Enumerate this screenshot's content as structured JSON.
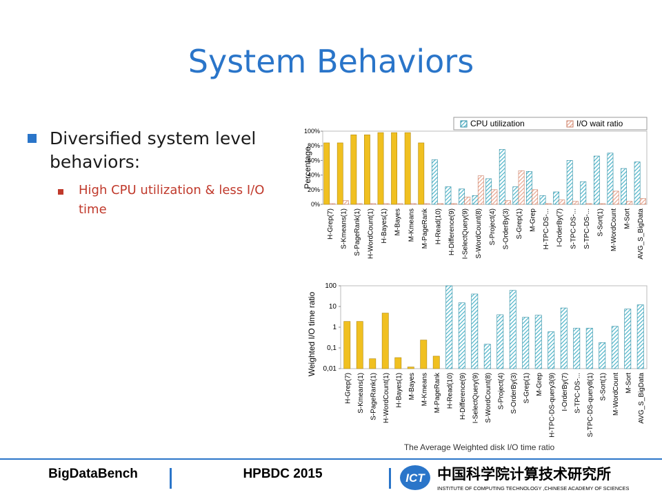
{
  "slide": {
    "title": "System Behaviors",
    "bullet1": "Diversified system level behaviors:",
    "bullet2": "High CPU utilization & less I/O time",
    "caption": "The Average Weighted disk I/O time ratio",
    "footer_left": "BigDataBench",
    "footer_mid": "HPBDC 2015",
    "logo_text_cn": "中国科学院计算技术研究所",
    "logo_text_en": "INSTITUTE OF COMPUTING TECHNOLOGY ,CHINESE ACADEMY OF SCIENCES",
    "accent_color": "#2a75c9",
    "red_color": "#c0392b"
  },
  "chart_data": [
    {
      "type": "bar",
      "ylabel": "Percentage",
      "ylim": [
        0,
        100
      ],
      "yticks": [
        "0%",
        "20%",
        "40%",
        "60%",
        "80%",
        "100%"
      ],
      "legend_position": "top",
      "categories": [
        "H-Grep(7)",
        "S-Kmeans(1)",
        "S-PageRank(1)",
        "H-WordCount(1)",
        "H-Bayes(1)",
        "M-Bayes",
        "M-Kmeans",
        "M-PageRank",
        "H-Read(10)",
        "H-Difference(9)",
        "I-SelectQuery(9)",
        "S-WordCount(8)",
        "S-Project(4)",
        "S-OrderBy(3)",
        "S-Grep(1)",
        "M-Grep",
        "H-TPC-DS-...",
        "I-OrderBy(7)",
        "S-TPC-DS-...",
        "S-TPC-DS-...",
        "S-Sort(1)",
        "M-WordCount",
        "M-Sort",
        "AVG_S_BigData"
      ],
      "series": [
        {
          "name": "CPU utilization",
          "values": [
            84,
            84,
            95,
            95,
            98,
            98,
            98,
            84,
            61,
            24,
            21,
            12,
            35,
            75,
            24,
            45,
            12,
            17,
            60,
            31,
            66,
            70,
            49,
            58
          ]
        },
        {
          "name": "I/O wait ratio",
          "values": [
            1,
            5,
            1,
            1,
            1,
            1,
            1,
            1,
            1,
            1,
            10,
            39,
            20,
            5,
            46,
            20,
            1,
            6,
            4,
            1,
            1,
            18,
            4,
            8
          ]
        }
      ],
      "category_colors": {
        "yellow": "#f0c020",
        "teal": "#4ab3c8"
      },
      "yellow_count": 8,
      "io_color": "#e8a58f"
    },
    {
      "type": "bar",
      "ylabel": "Weighted I/O time ratio",
      "scale": "log",
      "ylim": [
        0.01,
        100
      ],
      "yticks": [
        "0,01",
        "0,1",
        "1",
        "10",
        "100"
      ],
      "categories": [
        "H-Grep(7)",
        "S-Kmeans(1)",
        "S-PageRank(1)",
        "H-WordCount(1)",
        "H-Bayes(1)",
        "M-Bayes",
        "M-Kmeans",
        "M-PageRank",
        "H-Read(10)",
        "H-Difference(9)",
        "I-SelectQuery(9)",
        "S-WordCount(8)",
        "S-Project(4)",
        "S-OrderBy(3)",
        "S-Grep(1)",
        "M-Grep",
        "H-TPC-DS-query3(9)",
        "I-OrderBy(7)",
        "S-TPC-DS-...",
        "S-TPC-DS-query8(1)",
        "S-Sort(1)",
        "M-WordCount",
        "M-Sort",
        "AVG_S_BigData"
      ],
      "values": [
        1.9,
        1.9,
        0.03,
        4.8,
        0.034,
        0.012,
        0.24,
        0.04,
        100,
        15,
        40,
        0.15,
        4,
        60,
        3,
        3.8,
        0.6,
        8.5,
        0.9,
        0.9,
        0.18,
        1.1,
        7.5,
        12
      ],
      "yellow_count": 8
    }
  ]
}
